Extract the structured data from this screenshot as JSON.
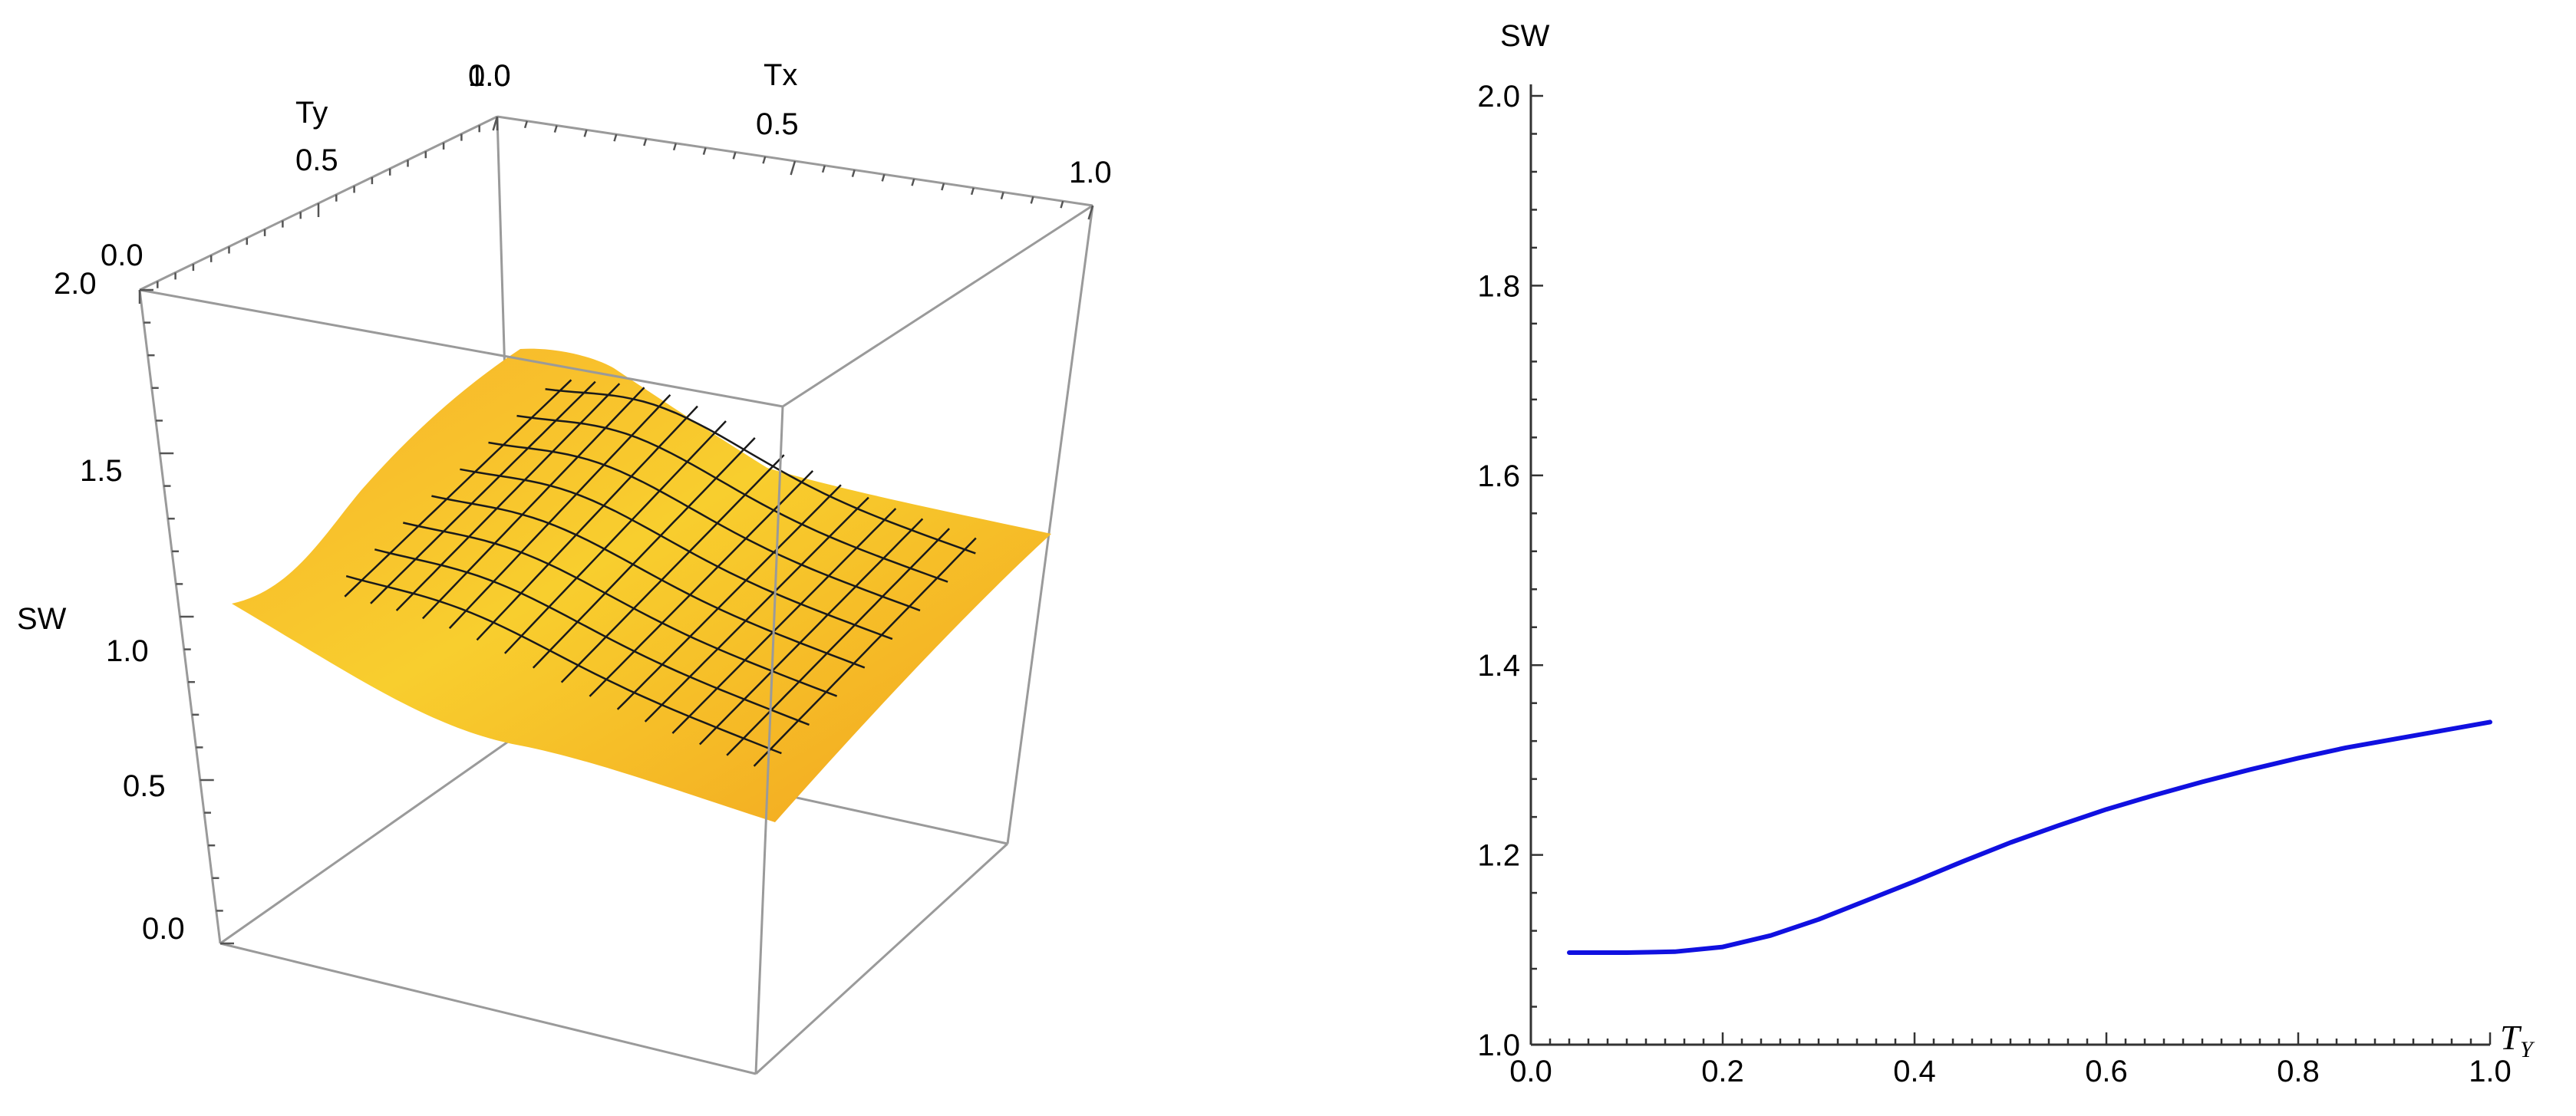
{
  "chart_data": [
    {
      "type": "surface",
      "xlabel": "Tx",
      "ylabel": "Ty",
      "zlabel": "SW",
      "x_ticks": [
        "0.0",
        "0.5",
        "1.0"
      ],
      "y_ticks": [
        "0.0",
        "0.5",
        "1.0"
      ],
      "z_ticks": [
        "0.0",
        "0.5",
        "1.0",
        "1.5",
        "2.0"
      ],
      "xlim": [
        0,
        1
      ],
      "ylim": [
        0,
        1
      ],
      "zlim": [
        0,
        2
      ],
      "surface_color": "#F5B01A",
      "mesh_color": "#1A1A1A"
    },
    {
      "type": "line",
      "xlabel_main": "T",
      "xlabel_sub": "Y",
      "ylabel": "SW",
      "xlim": [
        0,
        1
      ],
      "ylim": [
        1,
        2
      ],
      "x_ticks": [
        "0.0",
        "0.2",
        "0.4",
        "0.6",
        "0.8",
        "1.0"
      ],
      "y_ticks": [
        "1.0",
        "1.2",
        "1.4",
        "1.6",
        "1.8",
        "2.0"
      ],
      "series": [
        {
          "color": "#1010E0",
          "x": [
            0.04,
            0.1,
            0.15,
            0.2,
            0.25,
            0.3,
            0.35,
            0.4,
            0.45,
            0.5,
            0.55,
            0.6,
            0.65,
            0.7,
            0.75,
            0.8,
            0.85,
            0.9,
            0.95,
            1.0
          ],
          "y": [
            1.097,
            1.097,
            1.098,
            1.103,
            1.115,
            1.132,
            1.152,
            1.172,
            1.193,
            1.213,
            1.231,
            1.248,
            1.263,
            1.277,
            1.29,
            1.302,
            1.313,
            1.322,
            1.331,
            1.34
          ]
        }
      ]
    }
  ]
}
